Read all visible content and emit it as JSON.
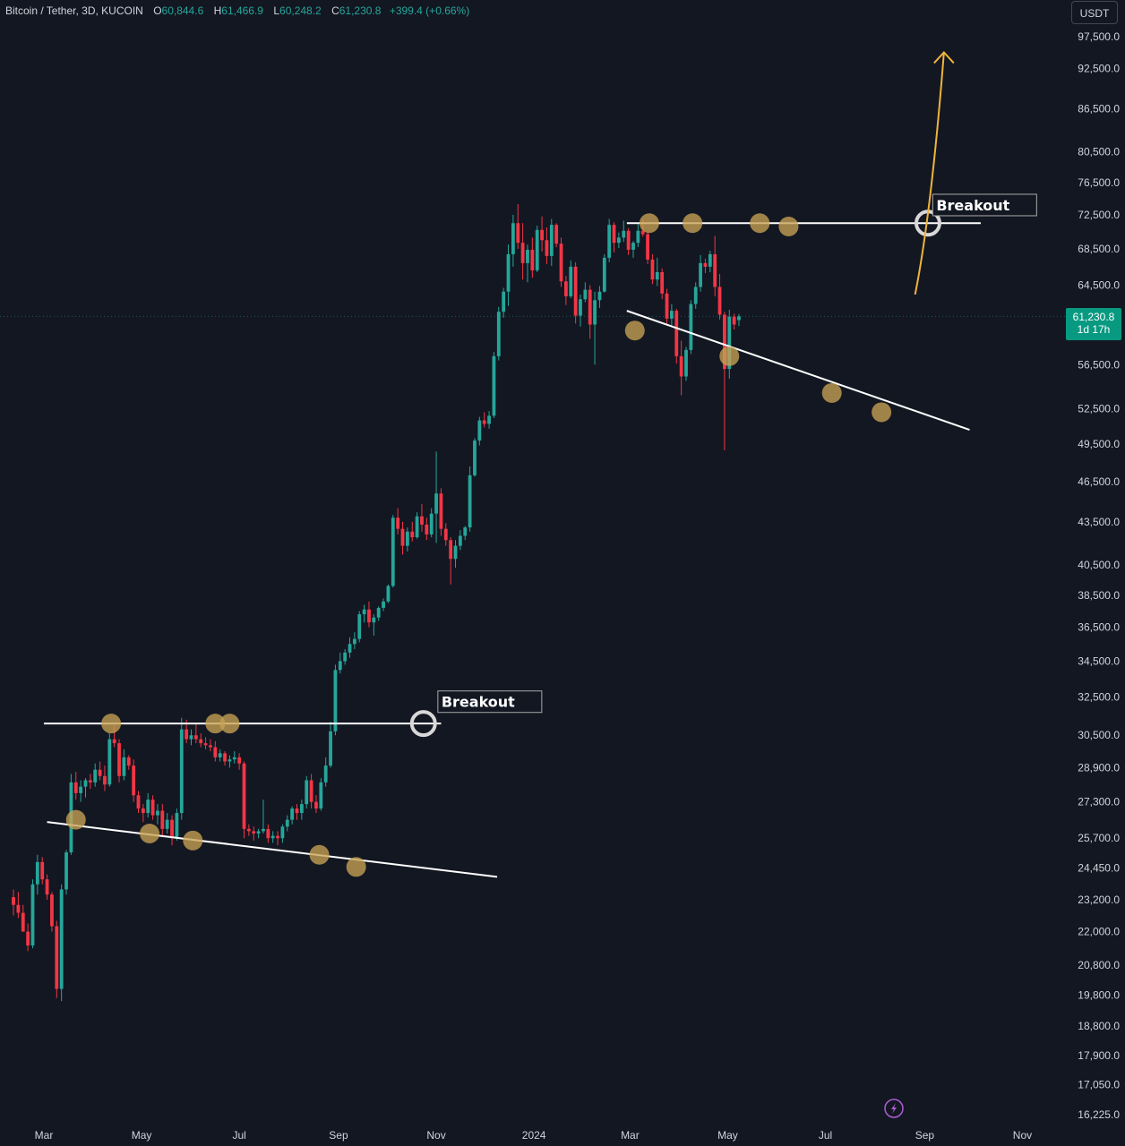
{
  "header": {
    "symbol": "Bitcoin / Tether, 3D, KUCOIN",
    "open_label": "O",
    "open": "60,844.6",
    "high_label": "H",
    "high": "61,466.9",
    "low_label": "L",
    "low": "60,248.2",
    "close_label": "C",
    "close": "61,230.8",
    "change": "+399.4 (+0.66%)"
  },
  "currency": "USDT",
  "last_price": {
    "price": "61,230.8",
    "countdown": "1d 17h"
  },
  "colors": {
    "background": "#131722",
    "up": "#26a69a",
    "down": "#f23645",
    "marker": "#c8a253",
    "projection": "#f0b43a",
    "trendline": "#ffffff"
  },
  "icons": {
    "bottom": "lightning-icon"
  },
  "chart_data": {
    "type": "candlestick",
    "title": "",
    "y_scale": "log",
    "ylim": [
      16000,
      100000
    ],
    "y_ticks": [
      "97,500.0",
      "92,500.0",
      "86,500.0",
      "80,500.0",
      "76,500.0",
      "72,500.0",
      "68,500.0",
      "64,500.0",
      "56,500.0",
      "52,500.0",
      "49,500.0",
      "46,500.0",
      "43,500.0",
      "40,500.0",
      "38,500.0",
      "36,500.0",
      "34,500.0",
      "32,500.0",
      "30,500.0",
      "28,900.0",
      "27,300.0",
      "25,700.0",
      "24,450.0",
      "23,200.0",
      "22,000.0",
      "20,800.0",
      "19,800.0",
      "18,800.0",
      "17,900.0",
      "17,050.0",
      "16,225.0"
    ],
    "x_ticks": [
      "Mar",
      "May",
      "Jul",
      "Sep",
      "Nov",
      "2024",
      "Mar",
      "May",
      "Jul",
      "Sep",
      "Nov"
    ],
    "x_tick_dates": [
      "2023-03-01",
      "2023-05-01",
      "2023-07-01",
      "2023-09-01",
      "2023-11-01",
      "2024-01-01",
      "2024-03-01",
      "2024-05-01",
      "2024-07-01",
      "2024-09-01",
      "2024-11-01"
    ],
    "candle_interval_days": 3,
    "first_candle_date": "2023-02-10",
    "ohlc": [
      [
        23300,
        23600,
        22600,
        23000
      ],
      [
        23000,
        23500,
        22500,
        22700
      ],
      [
        22700,
        23000,
        22000,
        22000
      ],
      [
        22000,
        22300,
        21300,
        21500
      ],
      [
        21500,
        24000,
        21400,
        23800
      ],
      [
        23800,
        25000,
        23400,
        24700
      ],
      [
        24700,
        24900,
        23800,
        24000
      ],
      [
        24000,
        24200,
        23200,
        23400
      ],
      [
        23400,
        23500,
        22000,
        22200
      ],
      [
        22200,
        22400,
        19700,
        20000
      ],
      [
        20000,
        23800,
        19600,
        23600
      ],
      [
        23600,
        25200,
        23400,
        25100
      ],
      [
        25100,
        28600,
        25000,
        28200
      ],
      [
        28200,
        28700,
        27400,
        27700
      ],
      [
        27700,
        28300,
        27300,
        28000
      ],
      [
        28000,
        28400,
        27500,
        28300
      ],
      [
        28300,
        28600,
        27900,
        28200
      ],
      [
        28200,
        29100,
        28000,
        28800
      ],
      [
        28800,
        29200,
        28300,
        28500
      ],
      [
        28500,
        29000,
        27800,
        28100
      ],
      [
        28100,
        30600,
        28000,
        30300
      ],
      [
        30300,
        31000,
        29900,
        30100
      ],
      [
        30100,
        30300,
        28200,
        28500
      ],
      [
        28500,
        29800,
        28300,
        29400
      ],
      [
        29400,
        29500,
        28800,
        29000
      ],
      [
        29000,
        29300,
        27300,
        27600
      ],
      [
        27600,
        27800,
        26800,
        27000
      ],
      [
        27000,
        27200,
        26400,
        26800
      ],
      [
        26800,
        27700,
        26600,
        27400
      ],
      [
        27400,
        27600,
        26500,
        26700
      ],
      [
        26700,
        27200,
        26300,
        26900
      ],
      [
        26900,
        27200,
        25800,
        26100
      ],
      [
        26100,
        26800,
        25900,
        26500
      ],
      [
        26500,
        26700,
        25400,
        25700
      ],
      [
        25700,
        27000,
        25600,
        26800
      ],
      [
        26800,
        31400,
        26500,
        30800
      ],
      [
        30800,
        31300,
        30100,
        30300
      ],
      [
        30300,
        30800,
        30000,
        30500
      ],
      [
        30500,
        31100,
        30100,
        30300
      ],
      [
        30300,
        30600,
        29900,
        30100
      ],
      [
        30100,
        30400,
        29800,
        30000
      ],
      [
        30000,
        30300,
        29700,
        29900
      ],
      [
        29900,
        30200,
        29200,
        29400
      ],
      [
        29400,
        29800,
        29200,
        29600
      ],
      [
        29600,
        29700,
        29000,
        29200
      ],
      [
        29200,
        29500,
        28900,
        29300
      ],
      [
        29300,
        29700,
        29100,
        29400
      ],
      [
        29400,
        29600,
        28800,
        29100
      ],
      [
        29100,
        29200,
        25700,
        26100
      ],
      [
        26100,
        26300,
        25800,
        26000
      ],
      [
        26000,
        26200,
        25600,
        25900
      ],
      [
        25900,
        26100,
        25700,
        26000
      ],
      [
        26000,
        27400,
        25900,
        26100
      ],
      [
        26100,
        26300,
        25500,
        25700
      ],
      [
        25700,
        26000,
        25500,
        25800
      ],
      [
        25800,
        26000,
        25400,
        25700
      ],
      [
        25700,
        26300,
        25500,
        26200
      ],
      [
        26200,
        26700,
        26000,
        26500
      ],
      [
        26500,
        27100,
        26300,
        27000
      ],
      [
        27000,
        27200,
        26500,
        26800
      ],
      [
        26800,
        27400,
        26500,
        27200
      ],
      [
        27200,
        28500,
        27000,
        28300
      ],
      [
        28300,
        28600,
        27000,
        27300
      ],
      [
        27300,
        27600,
        26800,
        27000
      ],
      [
        27000,
        28400,
        26900,
        28200
      ],
      [
        28200,
        29400,
        28000,
        29000
      ],
      [
        29000,
        31200,
        28900,
        30700
      ],
      [
        30700,
        34300,
        30500,
        34000
      ],
      [
        34000,
        35000,
        33800,
        34500
      ],
      [
        34500,
        35200,
        34300,
        35000
      ],
      [
        35000,
        35900,
        34700,
        35500
      ],
      [
        35500,
        36200,
        35200,
        35800
      ],
      [
        35800,
        37500,
        35600,
        37300
      ],
      [
        37300,
        37900,
        36800,
        37600
      ],
      [
        37600,
        38100,
        36500,
        36800
      ],
      [
        36800,
        37300,
        36000,
        37100
      ],
      [
        37100,
        37800,
        36900,
        37700
      ],
      [
        37700,
        38300,
        37500,
        38100
      ],
      [
        38100,
        39200,
        38000,
        39100
      ],
      [
        39100,
        44000,
        39000,
        43800
      ],
      [
        43800,
        44500,
        42600,
        43000
      ],
      [
        43000,
        43500,
        41200,
        41800
      ],
      [
        41800,
        43100,
        41400,
        42800
      ],
      [
        42800,
        43500,
        42100,
        42400
      ],
      [
        42400,
        44200,
        42300,
        43900
      ],
      [
        43900,
        44800,
        42800,
        43300
      ],
      [
        43300,
        43800,
        42200,
        42600
      ],
      [
        42600,
        44500,
        42400,
        44100
      ],
      [
        44100,
        48900,
        42000,
        45600
      ],
      [
        45600,
        46000,
        42500,
        43000
      ],
      [
        43000,
        43400,
        41800,
        42200
      ],
      [
        42200,
        42400,
        39200,
        40900
      ],
      [
        40900,
        42200,
        40300,
        41800
      ],
      [
        41800,
        42900,
        41500,
        42500
      ],
      [
        42500,
        43200,
        42200,
        43100
      ],
      [
        43100,
        47700,
        42800,
        47000
      ],
      [
        47000,
        50000,
        46900,
        49800
      ],
      [
        49800,
        51800,
        49400,
        51500
      ],
      [
        51500,
        52200,
        50900,
        51200
      ],
      [
        51200,
        52300,
        50800,
        51900
      ],
      [
        51900,
        57700,
        51700,
        57300
      ],
      [
        57300,
        62200,
        56900,
        61700
      ],
      [
        61700,
        64200,
        61100,
        63800
      ],
      [
        63800,
        69000,
        62300,
        67900
      ],
      [
        67900,
        72500,
        66500,
        71500
      ],
      [
        71500,
        73800,
        68500,
        69200
      ],
      [
        69200,
        71500,
        65100,
        66900
      ],
      [
        66900,
        69000,
        64800,
        68400
      ],
      [
        68400,
        69800,
        65300,
        66100
      ],
      [
        66100,
        71200,
        65900,
        70700
      ],
      [
        70700,
        72300,
        68200,
        69500
      ],
      [
        69500,
        71000,
        66800,
        67700
      ],
      [
        67700,
        72000,
        66600,
        71300
      ],
      [
        71300,
        71500,
        68700,
        69100
      ],
      [
        69100,
        69800,
        64300,
        64900
      ],
      [
        64900,
        65500,
        62400,
        63300
      ],
      [
        63300,
        67200,
        63100,
        66500
      ],
      [
        66500,
        67000,
        60500,
        61300
      ],
      [
        61300,
        63500,
        60200,
        63000
      ],
      [
        63000,
        64800,
        62700,
        64000
      ],
      [
        64000,
        64500,
        59000,
        60400
      ],
      [
        60400,
        63800,
        56500,
        62900
      ],
      [
        62900,
        64400,
        62100,
        63800
      ],
      [
        63800,
        67900,
        63700,
        67500
      ],
      [
        67500,
        72000,
        67000,
        71300
      ],
      [
        71300,
        71600,
        68100,
        69200
      ],
      [
        69200,
        70400,
        68600,
        69800
      ],
      [
        69800,
        71800,
        69300,
        70600
      ],
      [
        70600,
        70900,
        67800,
        68400
      ],
      [
        68400,
        69400,
        67500,
        69200
      ],
      [
        69200,
        71400,
        68700,
        70600
      ],
      [
        70600,
        71900,
        69900,
        70200
      ],
      [
        70200,
        70400,
        66800,
        67300
      ],
      [
        67300,
        67900,
        64600,
        65100
      ],
      [
        65100,
        67500,
        64400,
        65900
      ],
      [
        65900,
        66300,
        63000,
        63600
      ],
      [
        63600,
        64100,
        60500,
        61000
      ],
      [
        61000,
        62500,
        60300,
        61800
      ],
      [
        61800,
        62000,
        56600,
        57300
      ],
      [
        57300,
        58800,
        53700,
        55400
      ],
      [
        55400,
        58200,
        55000,
        57900
      ],
      [
        57900,
        62900,
        57500,
        62500
      ],
      [
        62500,
        64800,
        62000,
        64300
      ],
      [
        64300,
        67800,
        63800,
        66900
      ],
      [
        66900,
        67400,
        65800,
        66500
      ],
      [
        66500,
        68300,
        65900,
        67900
      ],
      [
        67900,
        70000,
        63300,
        64300
      ],
      [
        64300,
        65700,
        60900,
        61400
      ],
      [
        61400,
        61700,
        49000,
        56100
      ],
      [
        56100,
        61900,
        55200,
        61200
      ],
      [
        61200,
        61500,
        59900,
        60400
      ],
      [
        60844.6,
        61466.9,
        60248.2,
        61230.8
      ]
    ],
    "trendlines": [
      {
        "from": [
          "2023-03-01",
          31100
        ],
        "to": [
          "2023-11-04",
          31100
        ]
      },
      {
        "from": [
          "2023-03-03",
          26400
        ],
        "to": [
          "2023-12-09",
          24100
        ]
      },
      {
        "from": [
          "2024-02-28",
          71500
        ],
        "to": [
          "2024-10-06",
          71500
        ]
      },
      {
        "from": [
          "2024-02-28",
          61800
        ],
        "to": [
          "2024-09-29",
          50700
        ]
      }
    ],
    "markers": [
      [
        "2023-03-21",
        26500
      ],
      [
        "2023-04-12",
        31100
      ],
      [
        "2023-05-06",
        25900
      ],
      [
        "2023-06-02",
        25600
      ],
      [
        "2023-06-16",
        31100
      ],
      [
        "2023-06-25",
        31100
      ],
      [
        "2023-08-20",
        25000
      ],
      [
        "2023-09-12",
        24500
      ],
      [
        "2024-03-04",
        59800
      ],
      [
        "2024-03-13",
        71500
      ],
      [
        "2024-04-09",
        71500
      ],
      [
        "2024-05-02",
        57300
      ],
      [
        "2024-05-21",
        71500
      ],
      [
        "2024-06-08",
        71100
      ],
      [
        "2024-07-05",
        53900
      ],
      [
        "2024-08-05",
        52200
      ]
    ],
    "breakout_points": [
      [
        "2023-10-24",
        31100
      ],
      [
        "2024-09-03",
        71500
      ]
    ],
    "annotations": [
      {
        "text": "Breakout",
        "date": "2023-11-02",
        "price": 32300
      },
      {
        "text": "Breakout",
        "date": "2024-09-06",
        "price": 73800
      }
    ],
    "projection": [
      [
        "2024-08-26",
        63500
      ],
      [
        "2024-09-05",
        72500
      ],
      [
        "2024-09-13",
        95000
      ]
    ]
  }
}
